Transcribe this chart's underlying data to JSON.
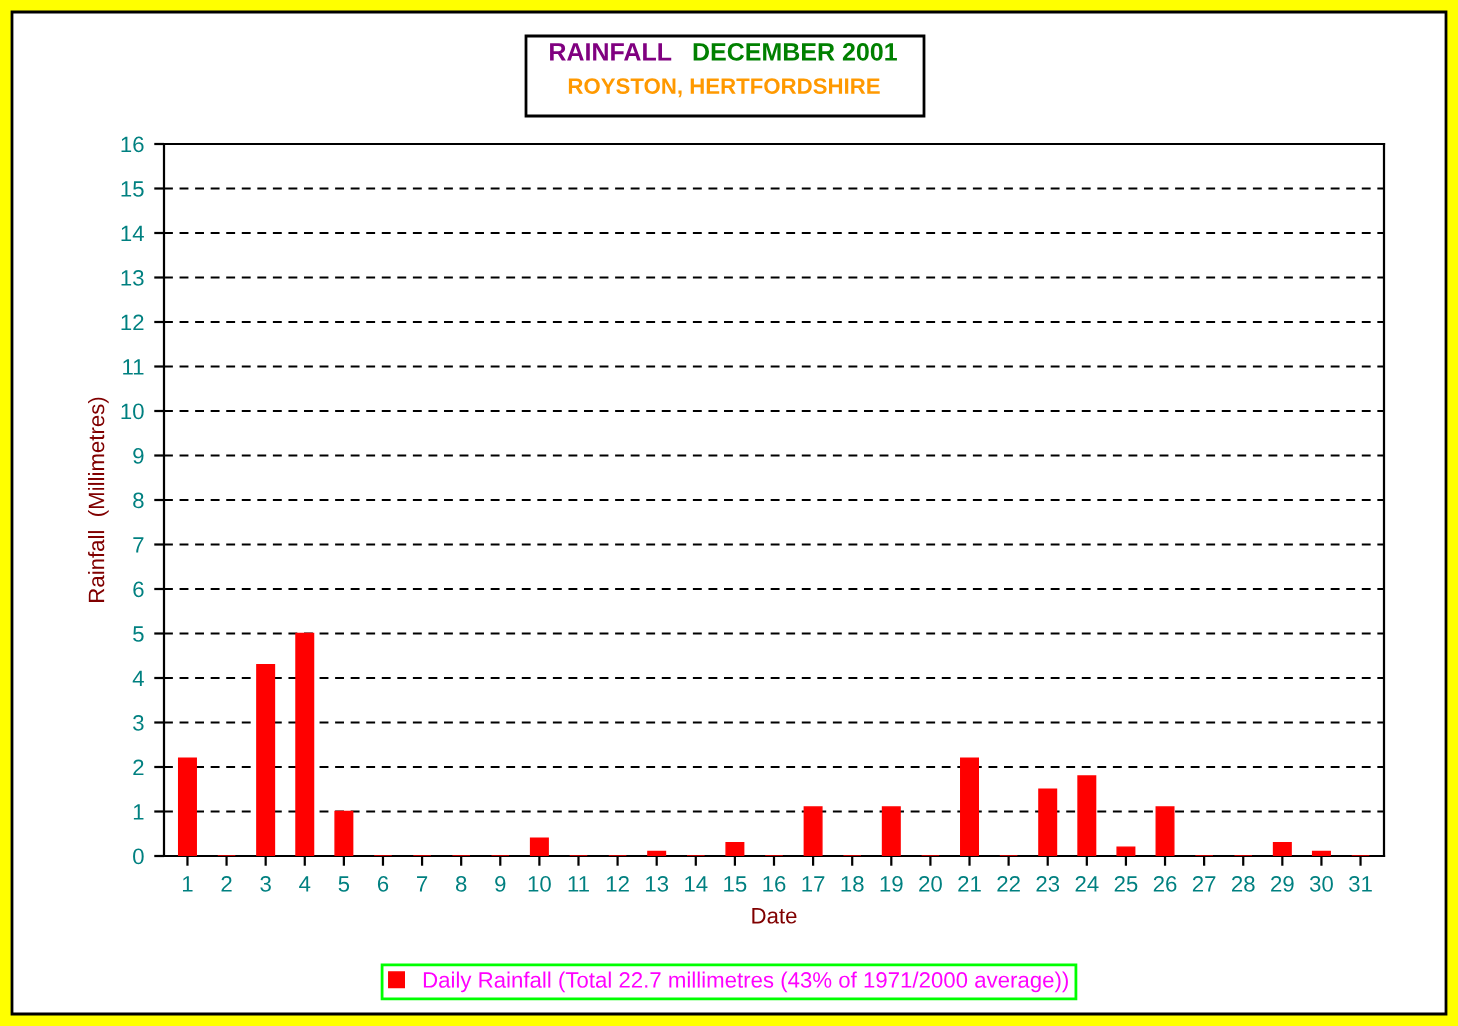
{
  "chart_data": {
    "type": "bar",
    "title": "RAINFALL",
    "subtitle": "DECEMBER 2001",
    "annotations": [
      "ROYSTON, HERTFORDSHIRE"
    ],
    "xlabel": "Date",
    "ylabel": "Rainfall  (Millimetres)",
    "categories": [
      "1",
      "2",
      "3",
      "4",
      "5",
      "6",
      "7",
      "8",
      "9",
      "10",
      "11",
      "12",
      "13",
      "14",
      "15",
      "16",
      "17",
      "18",
      "19",
      "20",
      "21",
      "22",
      "23",
      "24",
      "25",
      "26",
      "27",
      "28",
      "29",
      "30",
      "31"
    ],
    "series": [
      {
        "name": "Daily Rainfall (Total 22.7 millimetres (43% of 1971/2000 average))",
        "color": "#ff0000",
        "values": [
          2.2,
          0,
          4.3,
          5.0,
          1.0,
          0,
          0,
          0,
          0,
          0.4,
          0,
          0,
          0.1,
          0,
          0.3,
          0,
          1.1,
          0,
          1.1,
          0,
          2.2,
          0,
          1.5,
          1.8,
          0.2,
          1.1,
          0,
          0,
          0.3,
          0.1,
          0
        ]
      }
    ],
    "ylim": [
      0,
      16
    ],
    "yticks": [
      0,
      1,
      2,
      3,
      4,
      5,
      6,
      7,
      8,
      9,
      10,
      11,
      12,
      13,
      14,
      15,
      16
    ],
    "grid": "y",
    "legend": "bottom"
  }
}
